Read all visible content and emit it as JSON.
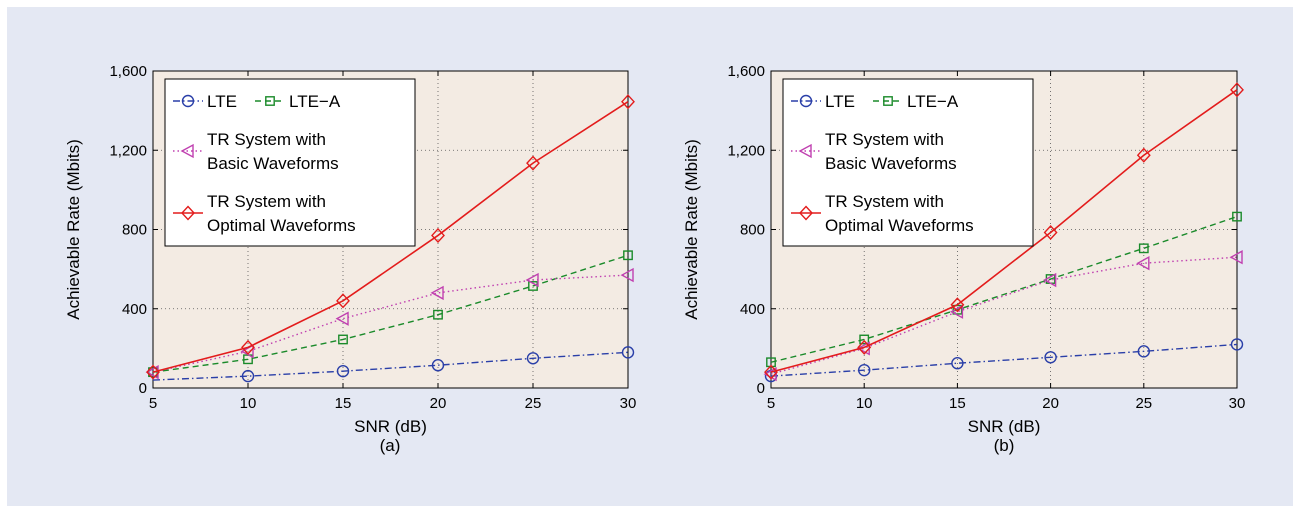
{
  "chart_data": [
    {
      "type": "line",
      "caption": "(a)",
      "xlabel": "SNR (dB)",
      "ylabel": "Achievable Rate (Mbits)",
      "xlim": [
        5,
        30
      ],
      "ylim": [
        0,
        1600
      ],
      "xticks": [
        "5",
        "10",
        "15",
        "20",
        "25",
        "30"
      ],
      "yticks": [
        "0",
        "400",
        "800",
        "1,200",
        "1,600"
      ],
      "grid": true,
      "legend_position": "top-left",
      "x": [
        5,
        10,
        15,
        20,
        25,
        30
      ],
      "series": [
        {
          "name": "LTE",
          "color": "#2a3fa8",
          "marker": "circle",
          "dash": "dashdot",
          "values": [
            40,
            60,
            85,
            115,
            150,
            180
          ]
        },
        {
          "name": "LTE−A",
          "color": "#1a8a2a",
          "marker": "square",
          "dash": "dashed",
          "values": [
            80,
            145,
            245,
            370,
            515,
            670
          ]
        },
        {
          "name": "TR System with Basic Waveforms",
          "legend_lines": [
            "TR System with",
            "Basic Waveforms"
          ],
          "color": "#c040b0",
          "marker": "triangle-left",
          "dash": "dotted",
          "values": [
            80,
            185,
            350,
            480,
            545,
            570
          ]
        },
        {
          "name": "TR System with Optimal Waveforms",
          "legend_lines": [
            "TR System with",
            "Optimal Waveforms"
          ],
          "color": "#e31c1c",
          "marker": "diamond",
          "dash": "solid",
          "values": [
            80,
            205,
            440,
            770,
            1135,
            1445
          ]
        }
      ]
    },
    {
      "type": "line",
      "caption": "(b)",
      "xlabel": "SNR (dB)",
      "ylabel": "Achievable Rate (Mbits)",
      "xlim": [
        5,
        30
      ],
      "ylim": [
        0,
        1600
      ],
      "xticks": [
        "5",
        "10",
        "15",
        "20",
        "25",
        "30"
      ],
      "yticks": [
        "0",
        "400",
        "800",
        "1,200",
        "1,600"
      ],
      "grid": true,
      "legend_position": "top-left",
      "x": [
        5,
        10,
        15,
        20,
        25,
        30
      ],
      "series": [
        {
          "name": "LTE",
          "color": "#2a3fa8",
          "marker": "circle",
          "dash": "dashdot",
          "values": [
            60,
            90,
            125,
            155,
            185,
            220
          ]
        },
        {
          "name": "LTE−A",
          "color": "#1a8a2a",
          "marker": "square",
          "dash": "dashed",
          "values": [
            130,
            245,
            395,
            550,
            705,
            865
          ]
        },
        {
          "name": "TR System with Basic Waveforms",
          "legend_lines": [
            "TR System with",
            "Basic Waveforms"
          ],
          "color": "#c040b0",
          "marker": "triangle-left",
          "dash": "dotted",
          "values": [
            70,
            200,
            385,
            545,
            630,
            660
          ]
        },
        {
          "name": "TR System with Optimal Waveforms",
          "legend_lines": [
            "TR System with",
            "Optimal Waveforms"
          ],
          "color": "#e31c1c",
          "marker": "diamond",
          "dash": "solid",
          "values": [
            80,
            205,
            420,
            785,
            1175,
            1505
          ]
        }
      ]
    }
  ]
}
